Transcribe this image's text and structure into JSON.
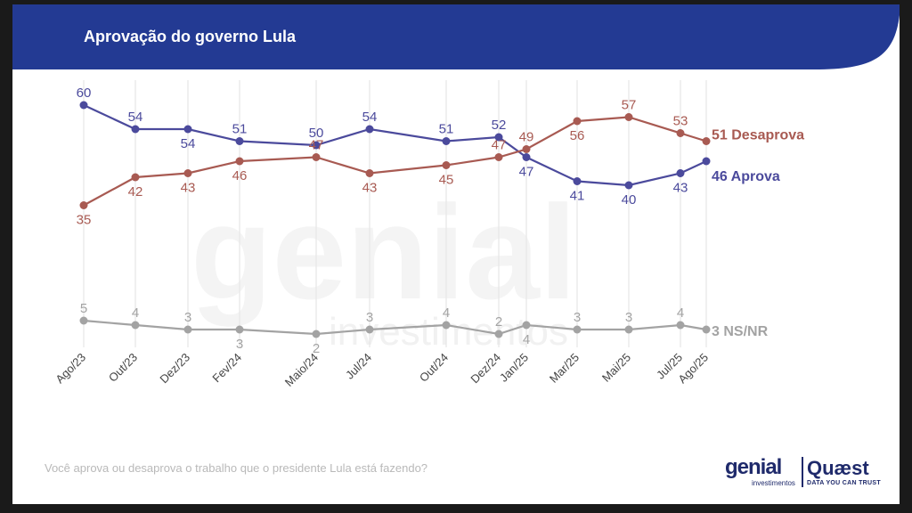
{
  "header": {
    "title": "Aprovação do governo Lula"
  },
  "footer": {
    "question": "Você aprova ou desaprova o trabalho que o presidente Lula está fazendo?"
  },
  "watermark": {
    "main": "genial",
    "sub": "investimentos"
  },
  "logos": {
    "genial": "genial",
    "genial_sub": "investimentos",
    "quaest": "Quæst",
    "quaest_sub": "DATA YOU CAN TRUST"
  },
  "colors": {
    "header": "#233a93",
    "aprova": "#4b4a9c",
    "desaprova": "#a85a52",
    "nsnr": "#a3a3a3"
  },
  "chart_data": {
    "type": "line",
    "categories": [
      "Ago/23",
      "Out/23",
      "Dez/23",
      "Fev/24",
      "Maio/24",
      "Jul/24",
      "Out/24",
      "Dez/24",
      "Jan/25",
      "Mar/25",
      "Mai/25",
      "Jul/25",
      "Ago/25"
    ],
    "series": [
      {
        "key": "aprova",
        "end_label": "46 Aprova",
        "values": [
          60,
          54,
          54,
          51,
          50,
          54,
          51,
          52,
          47,
          41,
          40,
          43,
          46
        ]
      },
      {
        "key": "desaprova",
        "end_label": "51 Desaprova",
        "values": [
          35,
          42,
          43,
          46,
          47,
          43,
          45,
          47,
          49,
          56,
          57,
          53,
          51
        ]
      },
      {
        "key": "nsnr",
        "end_label": "3 NS/NR",
        "values": [
          5,
          4,
          3,
          3,
          2,
          3,
          4,
          2,
          4,
          3,
          3,
          4,
          3
        ]
      }
    ],
    "grid": "vertical",
    "legend": "end-of-line labels"
  }
}
